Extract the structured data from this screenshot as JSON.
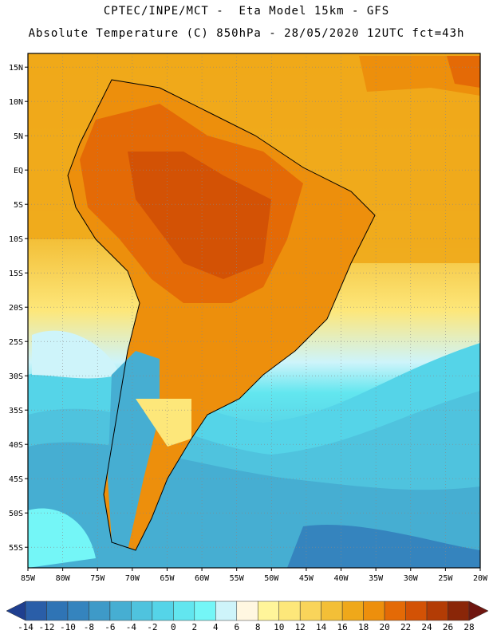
{
  "header": {
    "line1": "CPTEC/INPE/MCT -  Eta Model 15km - GFS",
    "line2": "Absolute Temperature (C) 850hPa - 28/05/2020 12UTC fct=43h"
  },
  "map": {
    "lat_labels": [
      "15N",
      "10N",
      "5N",
      "EQ",
      "5S",
      "10S",
      "15S",
      "20S",
      "25S",
      "30S",
      "35S",
      "40S",
      "45S",
      "50S",
      "55S"
    ],
    "lon_labels": [
      "85W",
      "80W",
      "75W",
      "70W",
      "65W",
      "60W",
      "55W",
      "50W",
      "45W",
      "40W",
      "35W",
      "30W",
      "25W",
      "20W"
    ]
  },
  "colorbar": {
    "values": [
      "-14",
      "-12",
      "-10",
      "-8",
      "-6",
      "-4",
      "-2",
      "0",
      "2",
      "4",
      "6",
      "8",
      "10",
      "12",
      "14",
      "16",
      "18",
      "20",
      "22",
      "24",
      "26",
      "28"
    ],
    "colors": [
      "#1f3f8f",
      "#2a5ea8",
      "#2f74b5",
      "#3584be",
      "#3e9ac8",
      "#46aed2",
      "#4fc3de",
      "#55d4e8",
      "#62e6ef",
      "#74f6f7",
      "#cef4fa",
      "#fff7e1",
      "#fff59a",
      "#fde77a",
      "#f9d45a",
      "#f3bf37",
      "#efa81a",
      "#ed8f0c",
      "#e46a06",
      "#d35205",
      "#b33c05",
      "#8a2608",
      "#6f1610"
    ]
  }
}
